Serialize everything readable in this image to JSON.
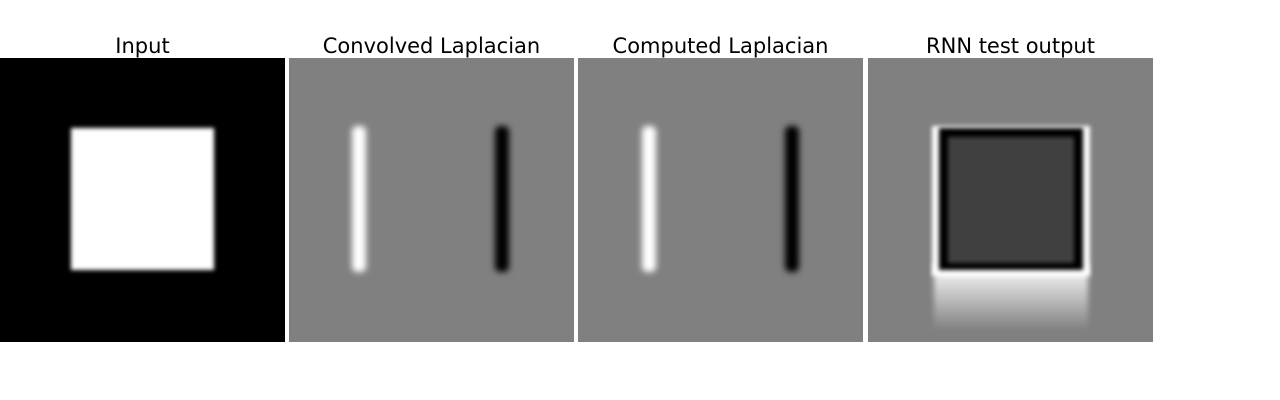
{
  "figure": {
    "panels": [
      {
        "title": "Input"
      },
      {
        "title": "Convolved Laplacian"
      },
      {
        "title": "Computed Laplacian"
      },
      {
        "title": "RNN test output"
      }
    ],
    "colors": {
      "background_black": "#000000",
      "neutral_gray": "#808080",
      "white": "#ffffff",
      "dark_fill": "#404040"
    }
  }
}
